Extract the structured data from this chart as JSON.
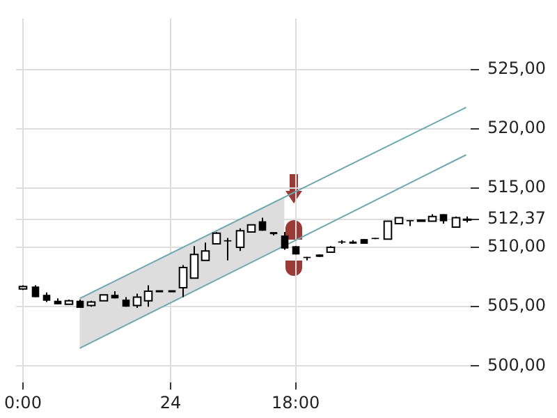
{
  "chart_data": {
    "type": "candlestick",
    "categories": [
      "0:00",
      null,
      null,
      null,
      null,
      null,
      null,
      null,
      null,
      null,
      null,
      null,
      null,
      "24",
      null,
      null,
      null,
      null,
      null,
      null,
      null,
      null,
      null,
      null,
      "18:00",
      null,
      null,
      null,
      null,
      null,
      null,
      null,
      null,
      null,
      null,
      null,
      null,
      null,
      null,
      null
    ],
    "ohlc": [
      [
        506.5,
        506.8,
        506.4,
        506.7
      ],
      [
        506.7,
        506.8,
        505.8,
        505.8
      ],
      [
        506.0,
        506.2,
        505.4,
        505.5
      ],
      [
        505.5,
        505.7,
        505.2,
        505.2
      ],
      [
        505.2,
        505.6,
        505.2,
        505.5
      ],
      [
        505.5,
        505.6,
        504.9,
        504.9
      ],
      [
        505.1,
        505.5,
        505.0,
        505.4
      ],
      [
        505.5,
        506.0,
        505.5,
        506.0
      ],
      [
        506.0,
        506.3,
        505.7,
        505.7
      ],
      [
        505.6,
        505.8,
        505.0,
        505.0
      ],
      [
        505.1,
        506.1,
        504.9,
        505.8
      ],
      [
        505.5,
        506.8,
        505.0,
        506.3
      ],
      [
        506.3,
        506.3,
        506.3,
        506.3
      ],
      [
        506.3,
        506.3,
        506.3,
        506.3
      ],
      [
        506.6,
        508.5,
        505.8,
        508.3
      ],
      [
        507.4,
        510.1,
        507.4,
        509.4
      ],
      [
        508.9,
        510.4,
        508.9,
        509.7
      ],
      [
        510.3,
        511.3,
        510.3,
        511.2
      ],
      [
        510.6,
        510.8,
        508.9,
        510.5
      ],
      [
        510.0,
        511.6,
        509.7,
        511.4
      ],
      [
        511.3,
        511.9,
        511.3,
        511.9
      ],
      [
        512.2,
        512.5,
        511.4,
        511.4
      ],
      [
        511.2,
        511.2,
        511.0,
        511.2
      ],
      [
        511.0,
        511.3,
        509.8,
        509.9
      ],
      [
        510.1,
        510.1,
        509.4,
        509.4
      ],
      [
        509.2,
        509.2,
        508.9,
        509.1
      ],
      [
        509.4,
        509.4,
        509.2,
        509.2
      ],
      [
        509.6,
        510.1,
        509.6,
        510.0
      ],
      [
        510.5,
        510.6,
        510.3,
        510.4
      ],
      [
        510.4,
        510.6,
        510.3,
        510.4
      ],
      [
        510.7,
        510.7,
        510.3,
        510.3
      ],
      [
        510.8,
        510.8,
        510.7,
        510.7
      ],
      [
        510.7,
        512.2,
        510.7,
        512.2
      ],
      [
        512.0,
        512.5,
        512.0,
        512.5
      ],
      [
        512.3,
        512.3,
        511.8,
        512.2
      ],
      [
        512.2,
        512.3,
        512.2,
        512.3
      ],
      [
        512.2,
        512.8,
        512.2,
        512.6
      ],
      [
        512.8,
        512.8,
        512.0,
        512.2
      ],
      [
        511.7,
        512.6,
        511.7,
        512.5
      ],
      [
        512.3,
        512.6,
        512.1,
        512.37
      ]
    ],
    "series": [
      {
        "type": "line",
        "values": [
          null,
          null,
          null,
          null,
          null,
          505.7,
          null,
          null,
          null,
          null,
          null,
          null,
          null,
          null,
          null,
          null,
          null,
          null,
          null,
          null,
          null,
          null,
          null,
          null,
          null,
          null,
          null,
          null,
          null,
          null,
          null,
          null,
          null,
          null,
          null,
          null,
          null,
          null,
          null,
          521.8
        ],
        "lower": [
          null,
          null,
          null,
          null,
          null,
          501.5,
          null,
          null,
          null,
          null,
          null,
          null,
          null,
          null,
          null,
          null,
          null,
          null,
          null,
          null,
          null,
          null,
          null,
          510.2,
          null,
          null,
          null,
          null,
          null,
          null,
          null,
          null,
          null,
          null,
          null,
          null,
          null,
          null,
          null,
          null
        ],
        "upper": [
          null,
          null,
          null,
          null,
          null,
          505.7,
          null,
          null,
          null,
          null,
          null,
          null,
          null,
          null,
          null,
          null,
          null,
          null,
          null,
          null,
          null,
          null,
          null,
          514.3,
          null,
          null,
          null,
          null,
          null,
          null,
          null,
          null,
          null,
          null,
          null,
          null,
          null,
          null,
          null,
          null
        ],
        "color": "#6fa8b0"
      },
      {
        "type": "line",
        "values": [
          null,
          null,
          null,
          null,
          null,
          501.5,
          null,
          null,
          null,
          null,
          null,
          null,
          null,
          null,
          null,
          null,
          null,
          null,
          null,
          null,
          null,
          null,
          null,
          null,
          null,
          null,
          null,
          null,
          null,
          null,
          null,
          null,
          null,
          null,
          null,
          null,
          null,
          null,
          null,
          517.8
        ],
        "color": "#6fa8b0"
      }
    ],
    "ylim": [
      498.6,
      529.3
    ],
    "yticks": [
      {
        "value": 500,
        "label": "500,00"
      },
      {
        "value": 505,
        "label": "505,00"
      },
      {
        "value": 510,
        "label": "510,00"
      },
      {
        "value": 515,
        "label": "515,00"
      },
      {
        "value": 520,
        "label": "520,00"
      },
      {
        "value": 525,
        "label": "525,00"
      },
      {
        "value": 512.37,
        "label": "512,37"
      }
    ],
    "grid": true,
    "legend": false
  }
}
